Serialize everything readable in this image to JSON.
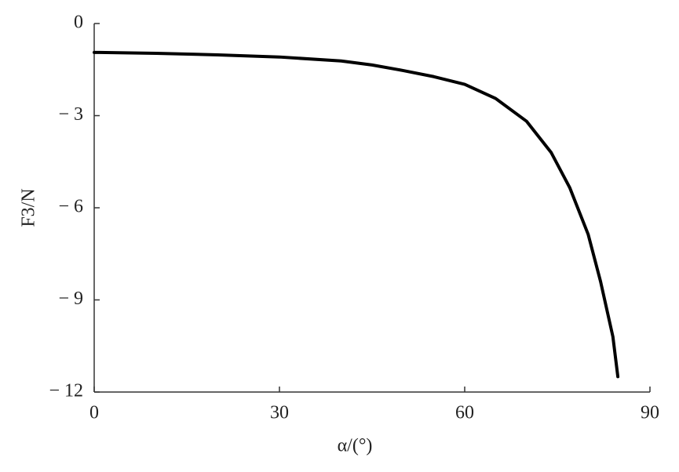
{
  "chart_data": {
    "type": "line",
    "x_label": "α/(°)",
    "y_label": "F3/N",
    "x": [
      0,
      10,
      20,
      30,
      40,
      45,
      50,
      55,
      60,
      65,
      70,
      74,
      77,
      80,
      82,
      84,
      84.8
    ],
    "series": [
      {
        "name": "F3",
        "color": "#000000",
        "values": [
          -0.94,
          -0.97,
          -1.02,
          -1.09,
          -1.22,
          -1.35,
          -1.53,
          -1.73,
          -1.98,
          -2.44,
          -3.18,
          -4.2,
          -5.34,
          -6.87,
          -8.4,
          -10.2,
          -11.5
        ]
      }
    ],
    "xlim": [
      0,
      90
    ],
    "xticks": [
      0,
      30,
      60,
      90
    ],
    "ylim": [
      -12,
      0
    ],
    "yticks": [
      {
        "value": -12,
        "label": "− 12"
      },
      {
        "value": -9,
        "label": "− 9"
      },
      {
        "value": -6,
        "label": "− 6"
      },
      {
        "value": -3,
        "label": "− 3"
      },
      0
    ]
  }
}
